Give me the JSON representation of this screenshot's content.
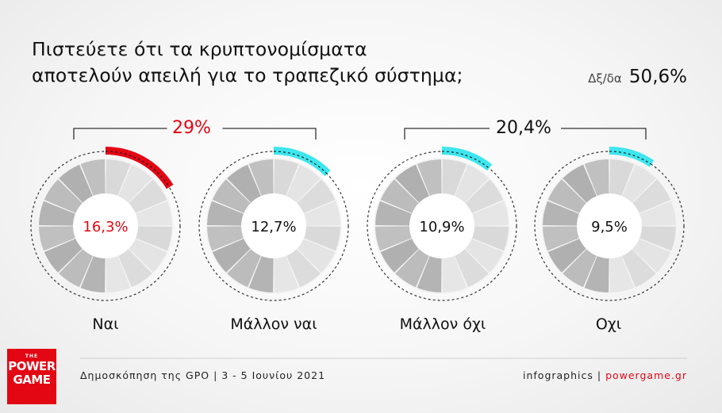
{
  "title_line1": "Πιστεύετε ότι τα κρυπτονομίσματα",
  "title_line2": "αποτελούν απειλή για το τραπεζικό σύστημα;",
  "dk_label": "Δξ/δα",
  "dk_value": "50,6%",
  "groups": [
    {
      "label": "29%",
      "color": "#e30613"
    },
    {
      "label": "20,4%",
      "color": "#111111"
    }
  ],
  "footer": {
    "source": "Δημοσκόπηση της GPO | 3 - 5 Ιουνίου 2021",
    "credit_prefix": "infographics | ",
    "credit_site": "powergame.gr"
  },
  "logo": {
    "line1": "THE",
    "line2": "POWER",
    "line3": "GAME"
  },
  "colors": {
    "brand_red": "#e30613",
    "accent_cyan": "#3de6ee",
    "dark_text": "#111111"
  },
  "chart_data": {
    "type": "pie",
    "title": "Πιστεύετε ότι τα κρυπτονομίσματα αποτελούν απειλή για το τραπεζικό σύστημα;",
    "unit": "%",
    "categories": [
      "Ναι",
      "Μάλλον ναι",
      "Μάλλον όχι",
      "Οχι"
    ],
    "values": [
      16.3,
      12.7,
      10.9,
      9.5
    ],
    "value_labels": [
      "16,3%",
      "12,7%",
      "10,9%",
      "9,5%"
    ],
    "value_colors": [
      "#e30613",
      "#111111",
      "#111111",
      "#111111"
    ],
    "highlight_colors": [
      "#e30613",
      "#3de6ee",
      "#3de6ee",
      "#3de6ee"
    ],
    "group_totals": [
      {
        "categories": [
          "Ναι",
          "Μάλλον ναι"
        ],
        "value": 29.0,
        "label": "29%"
      },
      {
        "categories": [
          "Μάλλον όχι",
          "Οχι"
        ],
        "value": 20.4,
        "label": "20,4%"
      }
    ],
    "no_answer": {
      "label": "Δξ/δα",
      "value": 50.6
    }
  }
}
